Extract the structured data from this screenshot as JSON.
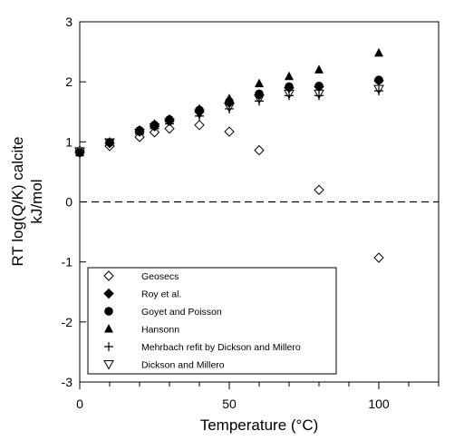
{
  "chart_data": {
    "type": "scatter",
    "xlabel": "Temperature (°C)",
    "ylabel_line1": "RT log(Q/K) calcite",
    "ylabel_line2": "kJ/mol",
    "xlim": [
      0,
      120
    ],
    "ylim": [
      -3,
      3
    ],
    "x_ticks": [
      0,
      50,
      100
    ],
    "x_minor_ticks": [
      10,
      20,
      30,
      40,
      60,
      70,
      80,
      90,
      110,
      120
    ],
    "y_ticks": [
      -3,
      -2,
      -1,
      0,
      1,
      2,
      3
    ],
    "reference_line": {
      "y": 0,
      "style": "dashed"
    },
    "legend_position": "bottom-left",
    "grid": false,
    "series": [
      {
        "name": "Geosecs",
        "marker": "diamond-open",
        "x": [
          0,
          10,
          20,
          25,
          30,
          40,
          50,
          60,
          80,
          100
        ],
        "y": [
          0.85,
          0.93,
          1.08,
          1.16,
          1.22,
          1.28,
          1.17,
          0.86,
          0.2,
          -0.93
        ]
      },
      {
        "name": "Roy et al.",
        "marker": "diamond-filled",
        "x": [
          0,
          10,
          20,
          25,
          30,
          40,
          50,
          60,
          70,
          80,
          100
        ],
        "y": [
          0.82,
          0.98,
          1.17,
          1.26,
          1.35,
          1.5,
          1.65,
          1.78,
          1.9,
          1.92,
          2.02
        ]
      },
      {
        "name": "Goyet and Poisson",
        "marker": "circle-filled",
        "x": [
          0,
          10,
          20,
          25,
          30,
          40,
          50,
          60,
          70,
          80,
          100
        ],
        "y": [
          0.82,
          0.99,
          1.19,
          1.28,
          1.37,
          1.53,
          1.67,
          1.8,
          1.92,
          1.93,
          2.03
        ]
      },
      {
        "name": "Hansonn",
        "marker": "triangle-up-filled",
        "x": [
          0,
          10,
          20,
          25,
          30,
          40,
          50,
          60,
          70,
          80,
          100
        ],
        "y": [
          0.82,
          1.0,
          1.2,
          1.3,
          1.38,
          1.55,
          1.72,
          1.97,
          2.09,
          2.2,
          2.48
        ]
      },
      {
        "name": "Mehrbach refit by Dickson and Millero",
        "marker": "plus",
        "x": [
          0,
          10,
          20,
          25,
          30,
          40,
          50,
          60,
          70,
          80,
          100
        ],
        "y": [
          0.82,
          0.98,
          1.13,
          1.22,
          1.3,
          1.43,
          1.55,
          1.68,
          1.77,
          1.77,
          1.85
        ]
      },
      {
        "name": "Dickson and Millero",
        "marker": "triangle-down-open",
        "x": [
          0,
          10,
          20,
          25,
          30,
          40,
          50,
          60,
          70,
          80,
          100
        ],
        "y": [
          0.84,
          0.99,
          1.15,
          1.24,
          1.32,
          1.47,
          1.58,
          1.72,
          1.8,
          1.8,
          1.88
        ]
      }
    ]
  }
}
